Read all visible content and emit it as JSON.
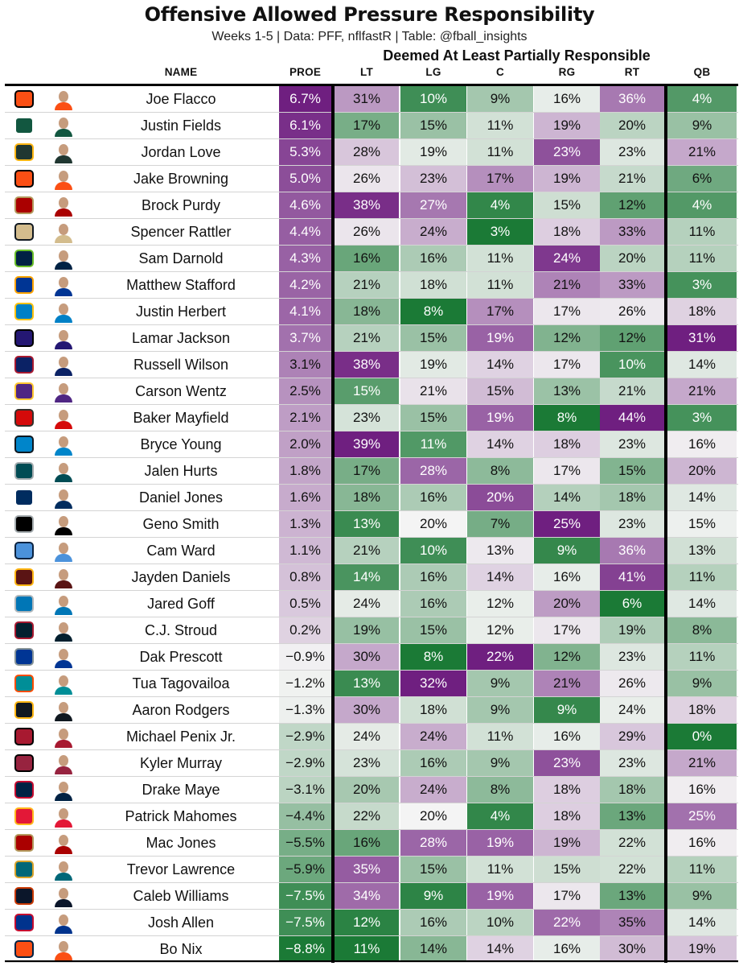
{
  "title": "Offensive Allowed Pressure Responsibility",
  "subtitle": "Weeks 1-5 | Data: PFF, nflfastR | Table: @fball_insights",
  "group_header": "Deemed At Least Partially Responsible",
  "chart_data": {
    "type": "table",
    "columns": [
      "NAME",
      "PROE",
      "LT",
      "LG",
      "C",
      "RG",
      "RT",
      "QB"
    ],
    "colors": {
      "high": "#6f1f80",
      "mid": "#f4f4f4",
      "low": "#1b7a36"
    },
    "rows": [
      {
        "team": "CIN",
        "name": "Joe Flacco",
        "proe": "6.7%",
        "lt": "31%",
        "lg": "10%",
        "c": "9%",
        "rg": "16%",
        "rt": "36%",
        "qb": "4%"
      },
      {
        "team": "NYJ",
        "name": "Justin Fields",
        "proe": "6.1%",
        "lt": "17%",
        "lg": "15%",
        "c": "11%",
        "rg": "19%",
        "rt": "20%",
        "qb": "9%"
      },
      {
        "team": "GB",
        "name": "Jordan Love",
        "proe": "5.3%",
        "lt": "28%",
        "lg": "19%",
        "c": "11%",
        "rg": "23%",
        "rt": "23%",
        "qb": "21%"
      },
      {
        "team": "CIN",
        "name": "Jake Browning",
        "proe": "5.0%",
        "lt": "26%",
        "lg": "23%",
        "c": "17%",
        "rg": "19%",
        "rt": "21%",
        "qb": "6%"
      },
      {
        "team": "SF",
        "name": "Brock Purdy",
        "proe": "4.6%",
        "lt": "38%",
        "lg": "27%",
        "c": "4%",
        "rg": "15%",
        "rt": "12%",
        "qb": "4%"
      },
      {
        "team": "NO",
        "name": "Spencer Rattler",
        "proe": "4.4%",
        "lt": "26%",
        "lg": "24%",
        "c": "3%",
        "rg": "18%",
        "rt": "33%",
        "qb": "11%"
      },
      {
        "team": "SEA",
        "name": "Sam Darnold",
        "proe": "4.3%",
        "lt": "16%",
        "lg": "16%",
        "c": "11%",
        "rg": "24%",
        "rt": "20%",
        "qb": "11%"
      },
      {
        "team": "LA",
        "name": "Matthew Stafford",
        "proe": "4.2%",
        "lt": "21%",
        "lg": "18%",
        "c": "11%",
        "rg": "21%",
        "rt": "33%",
        "qb": "3%"
      },
      {
        "team": "LAC",
        "name": "Justin Herbert",
        "proe": "4.1%",
        "lt": "18%",
        "lg": "8%",
        "c": "17%",
        "rg": "17%",
        "rt": "26%",
        "qb": "18%"
      },
      {
        "team": "BAL",
        "name": "Lamar Jackson",
        "proe": "3.7%",
        "lt": "21%",
        "lg": "15%",
        "c": "19%",
        "rg": "12%",
        "rt": "12%",
        "qb": "31%"
      },
      {
        "team": "NYG",
        "name": "Russell Wilson",
        "proe": "3.1%",
        "lt": "38%",
        "lg": "19%",
        "c": "14%",
        "rg": "17%",
        "rt": "10%",
        "qb": "14%"
      },
      {
        "team": "MIN",
        "name": "Carson Wentz",
        "proe": "2.5%",
        "lt": "15%",
        "lg": "21%",
        "c": "15%",
        "rg": "13%",
        "rt": "21%",
        "qb": "21%"
      },
      {
        "team": "TB",
        "name": "Baker Mayfield",
        "proe": "2.1%",
        "lt": "23%",
        "lg": "15%",
        "c": "19%",
        "rg": "8%",
        "rt": "44%",
        "qb": "3%"
      },
      {
        "team": "CAR",
        "name": "Bryce Young",
        "proe": "2.0%",
        "lt": "39%",
        "lg": "11%",
        "c": "14%",
        "rg": "18%",
        "rt": "23%",
        "qb": "16%"
      },
      {
        "team": "PHI",
        "name": "Jalen Hurts",
        "proe": "1.8%",
        "lt": "17%",
        "lg": "28%",
        "c": "8%",
        "rg": "17%",
        "rt": "15%",
        "qb": "20%"
      },
      {
        "team": "IND",
        "name": "Daniel Jones",
        "proe": "1.6%",
        "lt": "18%",
        "lg": "16%",
        "c": "20%",
        "rg": "14%",
        "rt": "18%",
        "qb": "14%"
      },
      {
        "team": "LV",
        "name": "Geno Smith",
        "proe": "1.3%",
        "lt": "13%",
        "lg": "20%",
        "c": "7%",
        "rg": "25%",
        "rt": "23%",
        "qb": "15%"
      },
      {
        "team": "TEN",
        "name": "Cam Ward",
        "proe": "1.1%",
        "lt": "21%",
        "lg": "10%",
        "c": "13%",
        "rg": "9%",
        "rt": "36%",
        "qb": "13%"
      },
      {
        "team": "WAS",
        "name": "Jayden Daniels",
        "proe": "0.8%",
        "lt": "14%",
        "lg": "16%",
        "c": "14%",
        "rg": "16%",
        "rt": "41%",
        "qb": "11%"
      },
      {
        "team": "DET",
        "name": "Jared Goff",
        "proe": "0.5%",
        "lt": "24%",
        "lg": "16%",
        "c": "12%",
        "rg": "20%",
        "rt": "6%",
        "qb": "14%"
      },
      {
        "team": "HOU",
        "name": "C.J. Stroud",
        "proe": "0.2%",
        "lt": "19%",
        "lg": "15%",
        "c": "12%",
        "rg": "17%",
        "rt": "19%",
        "qb": "8%"
      },
      {
        "team": "DAL",
        "name": "Dak Prescott",
        "proe": "−0.9%",
        "lt": "30%",
        "lg": "8%",
        "c": "22%",
        "rg": "12%",
        "rt": "23%",
        "qb": "11%"
      },
      {
        "team": "MIA",
        "name": "Tua Tagovailoa",
        "proe": "−1.2%",
        "lt": "13%",
        "lg": "32%",
        "c": "9%",
        "rg": "21%",
        "rt": "26%",
        "qb": "9%"
      },
      {
        "team": "PIT",
        "name": "Aaron Rodgers",
        "proe": "−1.3%",
        "lt": "30%",
        "lg": "18%",
        "c": "9%",
        "rg": "9%",
        "rt": "24%",
        "qb": "18%"
      },
      {
        "team": "ATL",
        "name": "Michael Penix Jr.",
        "proe": "−2.9%",
        "lt": "24%",
        "lg": "24%",
        "c": "11%",
        "rg": "16%",
        "rt": "29%",
        "qb": "0%"
      },
      {
        "team": "ARI",
        "name": "Kyler Murray",
        "proe": "−2.9%",
        "lt": "23%",
        "lg": "16%",
        "c": "9%",
        "rg": "23%",
        "rt": "23%",
        "qb": "21%"
      },
      {
        "team": "NE",
        "name": "Drake Maye",
        "proe": "−3.1%",
        "lt": "20%",
        "lg": "24%",
        "c": "8%",
        "rg": "18%",
        "rt": "18%",
        "qb": "16%"
      },
      {
        "team": "KC",
        "name": "Patrick Mahomes",
        "proe": "−4.4%",
        "lt": "22%",
        "lg": "20%",
        "c": "4%",
        "rg": "18%",
        "rt": "13%",
        "qb": "25%"
      },
      {
        "team": "SF",
        "name": "Mac Jones",
        "proe": "−5.5%",
        "lt": "16%",
        "lg": "28%",
        "c": "19%",
        "rg": "19%",
        "rt": "22%",
        "qb": "16%"
      },
      {
        "team": "JAX",
        "name": "Trevor Lawrence",
        "proe": "−5.9%",
        "lt": "35%",
        "lg": "15%",
        "c": "11%",
        "rg": "15%",
        "rt": "22%",
        "qb": "11%"
      },
      {
        "team": "CHI",
        "name": "Caleb Williams",
        "proe": "−7.5%",
        "lt": "34%",
        "lg": "9%",
        "c": "19%",
        "rg": "17%",
        "rt": "13%",
        "qb": "9%"
      },
      {
        "team": "BUF",
        "name": "Josh Allen",
        "proe": "−7.5%",
        "lt": "12%",
        "lg": "16%",
        "c": "10%",
        "rg": "22%",
        "rt": "35%",
        "qb": "14%"
      },
      {
        "team": "DEN",
        "name": "Bo Nix",
        "proe": "−8.8%",
        "lt": "11%",
        "lg": "14%",
        "c": "14%",
        "rg": "16%",
        "rt": "30%",
        "qb": "19%"
      }
    ]
  },
  "team_colors": {
    "CIN": [
      "#fb4f14",
      "#000000"
    ],
    "NYJ": [
      "#125740",
      "#ffffff"
    ],
    "GB": [
      "#203731",
      "#ffb612"
    ],
    "SF": [
      "#aa0000",
      "#b3995d"
    ],
    "NO": [
      "#d3bc8d",
      "#101820"
    ],
    "SEA": [
      "#002244",
      "#69be28"
    ],
    "LA": [
      "#003594",
      "#ffa300"
    ],
    "LAC": [
      "#0080c6",
      "#ffc20e"
    ],
    "BAL": [
      "#241773",
      "#000000"
    ],
    "NYG": [
      "#0b2265",
      "#a71930"
    ],
    "MIN": [
      "#4f2683",
      "#ffc62f"
    ],
    "TB": [
      "#d50a0a",
      "#34302b"
    ],
    "CAR": [
      "#0085ca",
      "#101820"
    ],
    "PHI": [
      "#004c54",
      "#a5acaf"
    ],
    "IND": [
      "#002c5f",
      "#ffffff"
    ],
    "LV": [
      "#000000",
      "#a5acaf"
    ],
    "TEN": [
      "#4b92db",
      "#0c2340"
    ],
    "WAS": [
      "#5a1414",
      "#ffb612"
    ],
    "DET": [
      "#0076b6",
      "#b0b7bc"
    ],
    "HOU": [
      "#03202f",
      "#a71930"
    ],
    "DAL": [
      "#003594",
      "#869397"
    ],
    "MIA": [
      "#008e97",
      "#fc4c02"
    ],
    "PIT": [
      "#101820",
      "#ffb612"
    ],
    "ATL": [
      "#a71930",
      "#000000"
    ],
    "ARI": [
      "#97233f",
      "#000000"
    ],
    "NE": [
      "#002244",
      "#c60c30"
    ],
    "KC": [
      "#e31837",
      "#ffb81c"
    ],
    "JAX": [
      "#006778",
      "#d7a22a"
    ],
    "CHI": [
      "#0b162a",
      "#c83803"
    ],
    "BUF": [
      "#00338d",
      "#c60c30"
    ],
    "DEN": [
      "#fb4f14",
      "#002244"
    ]
  }
}
